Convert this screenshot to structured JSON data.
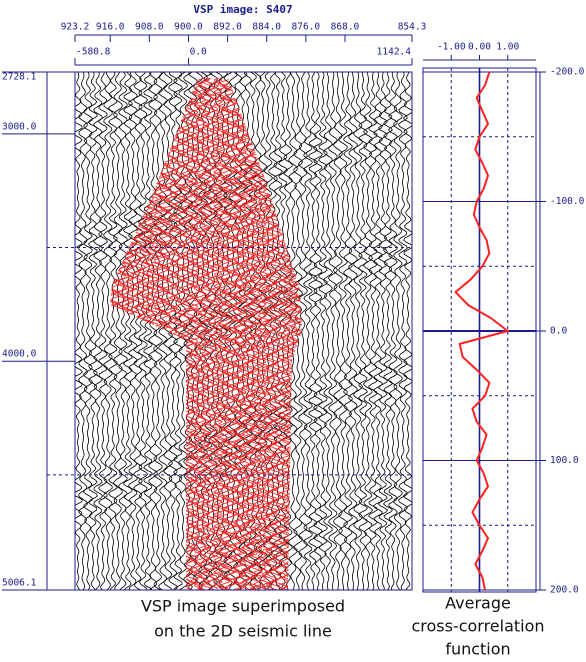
{
  "chart_data": [
    {
      "type": "seismic",
      "title": "VSP image: S407",
      "xlim": [
        923.2,
        854.3
      ],
      "xticks": [
        {
          "value": 923.2,
          "label": "923.2"
        },
        {
          "value": 916,
          "label": "916.0"
        },
        {
          "value": 908,
          "label": "908.0"
        },
        {
          "value": 900,
          "label": "900.0"
        },
        {
          "value": 892,
          "label": "892.0"
        },
        {
          "value": 884,
          "label": "884.0"
        },
        {
          "value": 876,
          "label": "876.0"
        },
        {
          "value": 868,
          "label": "868.0"
        },
        {
          "value": 854.3,
          "label": "854.3"
        }
      ],
      "x2lim": [
        -580.8,
        1142.4
      ],
      "x2ticks": [
        {
          "value": -580.8,
          "label": "-580.8"
        },
        {
          "value": 0,
          "label": "0.0"
        },
        {
          "value": 1142.4,
          "label": "1142.4"
        }
      ],
      "ylim": [
        2728.1,
        5006.1
      ],
      "yticks": [
        {
          "value": 2728.1,
          "label": "2728.1"
        },
        {
          "value": 3000,
          "label": "3000.0"
        },
        {
          "value": 4000,
          "label": "4000.0"
        },
        {
          "value": 5006.1,
          "label": "5006.1"
        }
      ],
      "ygrid_minor": [
        3500,
        4500
      ],
      "caption": [
        "VSP image superimposed",
        "on the 2D seismic line"
      ]
    },
    {
      "type": "line",
      "orientation": "vertical",
      "color": "#ff2222",
      "x": [
        -200,
        -190,
        -180,
        -170,
        -160,
        -150,
        -140,
        -130,
        -120,
        -110,
        -100,
        -90,
        -80,
        -70,
        -60,
        -50,
        -40,
        -30,
        -20,
        -10,
        0,
        10,
        20,
        30,
        40,
        50,
        60,
        70,
        80,
        90,
        100,
        110,
        120,
        130,
        140,
        150,
        160,
        170,
        180,
        190,
        200
      ],
      "values": [
        0.35,
        0.2,
        -0.1,
        0.1,
        0.3,
        0.0,
        -0.15,
        0.1,
        0.3,
        0.15,
        -0.1,
        -0.2,
        0.0,
        0.25,
        0.35,
        0.1,
        -0.3,
        -0.85,
        -0.4,
        0.4,
        1.0,
        -0.7,
        -0.6,
        -0.1,
        0.35,
        0.2,
        -0.25,
        -0.1,
        0.25,
        0.1,
        -0.1,
        0.15,
        0.3,
        0.0,
        -0.25,
        0.0,
        0.3,
        0.1,
        -0.15,
        0.1,
        0.2
      ],
      "xlim": [
        -2,
        2
      ],
      "xticks": [
        {
          "value": -1,
          "label": "-1.00"
        },
        {
          "value": 0,
          "label": "0.00"
        },
        {
          "value": 1,
          "label": "1.00"
        }
      ],
      "ylim": [
        -200,
        200
      ],
      "yticks": [
        {
          "value": -200,
          "label": "-200.0"
        },
        {
          "value": -100,
          "label": "-100.0"
        },
        {
          "value": 0,
          "label": "0.0"
        },
        {
          "value": 100,
          "label": "100.0"
        },
        {
          "value": 200,
          "label": "200.0"
        }
      ],
      "ygrid_minor": [
        -150,
        -50,
        50,
        150
      ],
      "caption": [
        "Average",
        "cross-correlation",
        "function"
      ]
    }
  ]
}
